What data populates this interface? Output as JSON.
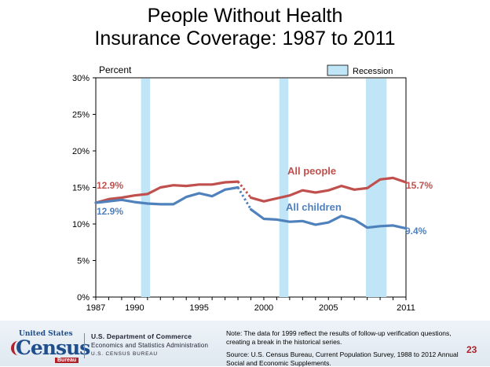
{
  "title_lines": [
    "People Without Health",
    "Insurance Coverage: 1987 to 2011"
  ],
  "colors": {
    "all_people": "#c0504d",
    "all_children": "#4f81bd",
    "recession": "#bfe5f7",
    "recession_border": "#7fb8d8",
    "axis": "#000000",
    "page_number": "#b2202a"
  },
  "chart_data": {
    "type": "line",
    "title": "People Without Health Insurance Coverage: 1987 to 2011",
    "ylabel": "Percent",
    "xlabel": "",
    "ylim": [
      0,
      30
    ],
    "xlim": [
      1987,
      2011
    ],
    "y_ticks": [
      "0%",
      "5%",
      "10%",
      "15%",
      "20%",
      "25%",
      "30%"
    ],
    "y_tick_values": [
      0,
      5,
      10,
      15,
      20,
      25,
      30
    ],
    "x_ticks": [
      "1987",
      "1990",
      "1995",
      "2000",
      "2005",
      "2011"
    ],
    "x_tick_values": [
      1987,
      1990,
      1995,
      2000,
      2005,
      2011
    ],
    "legend": {
      "label": "Recession",
      "position": "top-right"
    },
    "recessions": [
      [
        1990.5,
        1991.2
      ],
      [
        2001.2,
        2001.9
      ],
      [
        2007.9,
        2009.5
      ]
    ],
    "break_note": "1999",
    "series": [
      {
        "name": "All people",
        "color": "#c0504d",
        "start_label": "12.9%",
        "end_label": "15.7%",
        "segments": [
          {
            "x": [
              1987,
              1988,
              1989,
              1990,
              1991,
              1992,
              1993,
              1994,
              1995,
              1996,
              1997,
              1998
            ],
            "y": [
              12.9,
              13.4,
              13.6,
              13.9,
              14.1,
              15.0,
              15.3,
              15.2,
              15.4,
              15.4,
              15.7,
              15.8
            ]
          },
          {
            "x": [
              1999,
              2000,
              2001,
              2002,
              2003,
              2004,
              2005,
              2006,
              2007,
              2008,
              2009,
              2010,
              2011
            ],
            "y": [
              13.6,
              13.1,
              13.5,
              13.9,
              14.6,
              14.3,
              14.6,
              15.2,
              14.7,
              14.9,
              16.1,
              16.3,
              15.7
            ]
          }
        ],
        "break": {
          "x": [
            1998,
            1999
          ],
          "y": [
            15.8,
            13.6
          ]
        }
      },
      {
        "name": "All children",
        "color": "#4f81bd",
        "start_label": "12.9%",
        "end_label": "9.4%",
        "segments": [
          {
            "x": [
              1987,
              1988,
              1989,
              1990,
              1991,
              1992,
              1993,
              1994,
              1995,
              1996,
              1997,
              1998
            ],
            "y": [
              12.9,
              13.1,
              13.3,
              13.0,
              12.8,
              12.7,
              12.7,
              13.7,
              14.2,
              13.8,
              14.7,
              15.0
            ]
          },
          {
            "x": [
              1999,
              2000,
              2001,
              2002,
              2003,
              2004,
              2005,
              2006,
              2007,
              2008,
              2009,
              2010,
              2011
            ],
            "y": [
              12.0,
              10.7,
              10.6,
              10.3,
              10.4,
              9.9,
              10.2,
              11.1,
              10.6,
              9.5,
              9.7,
              9.8,
              9.4
            ]
          }
        ],
        "break": {
          "x": [
            1998,
            1999
          ],
          "y": [
            15.0,
            12.0
          ]
        }
      }
    ]
  },
  "footer": {
    "logo_top": "United States",
    "logo_main": "Census",
    "logo_sub": "Bureau",
    "dept_line1": "U.S. Department of Commerce",
    "dept_line2": "Economics and Statistics Administration",
    "dept_line3": "U.S. CENSUS BUREAU",
    "note": "Note: The data for 1999 reflect the results of follow-up verification questions, creating a break in the historical series.",
    "source": "Source: U.S. Census Bureau, Current Population Survey, 1988 to 2012 Annual Social and Economic Supplements.",
    "page_number": "23"
  }
}
